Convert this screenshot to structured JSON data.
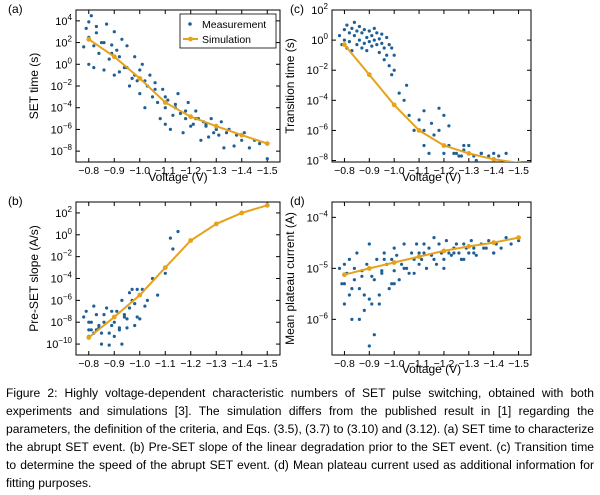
{
  "legend": {
    "measurement": "Measurement",
    "simulation": "Simulation"
  },
  "colors": {
    "measurement": "#1f5f95",
    "simulation": "#e6a21a",
    "axis": "#000000"
  },
  "caption": "Figure 2: Highly voltage-dependent characteristic numbers of SET pulse switching, obtained with both experiments and simulations [3]. The simulation differs from the published result in [1] regarding the parameters, the definition of the criteria, and Eqs. (3.5), (3.7) to (3.10) and (3.12). (a) SET time to characterize the abrupt SET event. (b) Pre-SET slope of the linear degradation prior to the SET event. (c) Transition time to determine the speed of the abrupt SET event. (d) Mean plateau current used as additional information for fitting purposes.",
  "chart_data": [
    {
      "panel": "(a)",
      "type": "scatter",
      "xlabel": "Voltage (V)",
      "ylabel": "SET time (s)",
      "xlim": [
        -0.75,
        -1.55
      ],
      "ylim": [
        1e-09,
        100000.0
      ],
      "log_y": true,
      "xticks": [
        -0.8,
        -0.9,
        -1.0,
        -1.1,
        -1.2,
        -1.3,
        -1.4,
        -1.5
      ],
      "xtick_labels": [
        "−0.8",
        "−0.9",
        "−1.0",
        "−1.1",
        "−1.2",
        "−1.3",
        "−1.4",
        "−1.5"
      ],
      "yticks": [
        1e-08,
        1e-06,
        0.0001,
        0.01,
        1,
        100,
        10000
      ],
      "ytick_labels": [
        {
          "b": "10",
          "e": "−8"
        },
        {
          "b": "10",
          "e": "−6"
        },
        {
          "b": "10",
          "e": "−4"
        },
        {
          "b": "10",
          "e": "−2"
        },
        {
          "b": "10",
          "e": "0"
        },
        {
          "b": "10",
          "e": "2"
        },
        {
          "b": "10",
          "e": "4"
        }
      ],
      "legend": true,
      "legend_position": "top-right",
      "simulation": {
        "x": [
          -0.8,
          -0.9,
          -1.0,
          -1.1,
          -1.2,
          -1.3,
          -1.4,
          -1.5
        ],
        "y": [
          200,
          5,
          0.05,
          0.0003,
          1.5e-05,
          2e-06,
          3e-07,
          5e-08
        ]
      },
      "measurement": {
        "x": [
          -0.78,
          -0.79,
          -0.8,
          -0.8,
          -0.81,
          -0.82,
          -0.82,
          -0.83,
          -0.84,
          -0.85,
          -0.86,
          -0.87,
          -0.88,
          -0.89,
          -0.9,
          -0.9,
          -0.91,
          -0.92,
          -0.93,
          -0.94,
          -0.95,
          -0.96,
          -0.97,
          -0.98,
          -0.99,
          -1.0,
          -1.0,
          -1.01,
          -1.02,
          -1.03,
          -1.04,
          -1.05,
          -1.06,
          -1.07,
          -1.08,
          -1.09,
          -1.1,
          -1.1,
          -1.11,
          -1.12,
          -1.13,
          -1.14,
          -1.15,
          -1.16,
          -1.17,
          -1.18,
          -1.19,
          -1.2,
          -1.21,
          -1.22,
          -1.23,
          -1.24,
          -1.25,
          -1.26,
          -1.27,
          -1.28,
          -1.29,
          -1.3,
          -1.31,
          -1.32,
          -1.33,
          -1.35,
          -1.37,
          -1.38,
          -1.4,
          -1.41,
          -1.43,
          -1.45,
          -1.47,
          -1.5,
          -0.8,
          -0.83,
          -0.86,
          -0.89,
          -0.92,
          -0.95,
          -0.98,
          -1.02,
          -1.06,
          -1.1,
          -1.14,
          -1.18,
          -1.22,
          -1.26,
          -1.3,
          -1.34
        ],
        "y": [
          40,
          2000,
          1,
          300,
          30000,
          50,
          0.5,
          800,
          10,
          100,
          0.3,
          5000,
          3,
          60,
          0.1,
          1000,
          20,
          0.2,
          200,
          0.5,
          50,
          0.01,
          0.05,
          5,
          0.03,
          0.002,
          0.3,
          1,
          0.0001,
          0.01,
          0.1,
          0.001,
          0.02,
          0.0003,
          1e-05,
          0.005,
          0.0001,
          3e-06,
          0.0005,
          1e-06,
          2e-05,
          0.0001,
          0.002,
          3e-05,
          5e-07,
          1e-05,
          0.0003,
          2e-06,
          3e-06,
          5e-05,
          1e-05,
          1e-07,
          5e-06,
          2e-06,
          2e-07,
          1e-05,
          5e-07,
          1e-06,
          3e-07,
          5e-06,
          2e-08,
          1e-06,
          3e-08,
          3e-07,
          1e-07,
          5e-07,
          2e-08,
          1e-07,
          5e-08,
          2e-09,
          8000,
          3000,
          100,
          10,
          5,
          0.5,
          0.1,
          0.03,
          0.005,
          0.001,
          0.0002,
          5e-05,
          1e-05,
          3e-06,
          1e-06,
          5e-07
        ]
      }
    },
    {
      "panel": "(b)",
      "type": "scatter",
      "xlabel": "",
      "ylabel": "Pre-SET slope (A/s)",
      "xlim": [
        -0.75,
        -1.55
      ],
      "ylim": [
        1e-11,
        1000.0
      ],
      "log_y": true,
      "xticks": [
        -0.8,
        -0.9,
        -1.0,
        -1.1,
        -1.2,
        -1.3,
        -1.4,
        -1.5
      ],
      "xtick_labels": [
        "−0.8",
        "−0.9",
        "−1.0",
        "−1.1",
        "−1.2",
        "−1.3",
        "−1.4",
        "−1.5"
      ],
      "yticks": [
        1e-10,
        1e-08,
        1e-06,
        0.0001,
        0.01,
        1,
        100
      ],
      "ytick_labels": [
        {
          "b": "10",
          "e": "−10"
        },
        {
          "b": "10",
          "e": "−8"
        },
        {
          "b": "10",
          "e": "−6"
        },
        {
          "b": "10",
          "e": "−4"
        },
        {
          "b": "10",
          "e": "−2"
        },
        {
          "b": "10",
          "e": "0"
        },
        {
          "b": "10",
          "e": "2"
        }
      ],
      "legend": false,
      "simulation": {
        "x": [
          -0.8,
          -0.9,
          -1.0,
          -1.1,
          -1.2,
          -1.3,
          -1.4,
          -1.5
        ],
        "y": [
          4e-10,
          3e-08,
          3e-06,
          0.001,
          0.3,
          10,
          100,
          500
        ]
      },
      "measurement": {
        "x": [
          -0.78,
          -0.79,
          -0.8,
          -0.8,
          -0.81,
          -0.82,
          -0.82,
          -0.83,
          -0.84,
          -0.85,
          -0.86,
          -0.87,
          -0.88,
          -0.89,
          -0.9,
          -0.9,
          -0.91,
          -0.92,
          -0.93,
          -0.94,
          -0.95,
          -0.96,
          -0.97,
          -0.98,
          -0.99,
          -1.0,
          -1.0,
          -1.01,
          -1.02,
          -1.03,
          -1.05,
          -1.07,
          -1.1,
          -1.12,
          -1.13,
          -1.15,
          -0.8,
          -0.83,
          -0.86,
          -0.89,
          -0.92,
          -0.95,
          -0.97,
          -0.99,
          -0.84,
          -0.88,
          -0.93,
          -0.96,
          -0.98,
          -0.81,
          -0.85,
          -0.9,
          -0.94
        ],
        "y": [
          3e-08,
          1e-07,
          2e-09,
          5e-10,
          1e-08,
          3e-07,
          1e-09,
          5e-08,
          3e-09,
          1e-10,
          1e-08,
          2e-07,
          1e-09,
          5e-09,
          3e-08,
          5e-10,
          1e-07,
          2e-09,
          1e-06,
          5e-08,
          3e-09,
          2e-07,
          1e-06,
          5e-09,
          1e-05,
          3e-06,
          2e-08,
          1e-05,
          3e-07,
          1e-06,
          0.0001,
          3e-06,
          0.0003,
          0.5,
          0.05,
          2,
          1e-08,
          2e-09,
          5e-08,
          1e-07,
          3e-09,
          2e-08,
          1e-05,
          3e-08,
          5e-09,
          8e-11,
          1e-10,
          5e-06,
          5e-07,
          2e-09,
          1e-09,
          1e-08,
          3e-08
        ]
      }
    },
    {
      "panel": "(c)",
      "type": "scatter",
      "xlabel": "Voltage (V)",
      "ylabel": "Transition time (s)",
      "xlim": [
        -0.75,
        -1.55
      ],
      "ylim": [
        8e-09,
        100
      ],
      "log_y": true,
      "xticks": [
        -0.8,
        -0.9,
        -1.0,
        -1.1,
        -1.2,
        -1.3,
        -1.4,
        -1.5
      ],
      "xtick_labels": [
        "−0.8",
        "−0.9",
        "−1.0",
        "−1.1",
        "−1.2",
        "−1.3",
        "−1.4",
        "−1.5"
      ],
      "yticks": [
        1e-08,
        1e-06,
        0.0001,
        0.01,
        1,
        100
      ],
      "ytick_labels": [
        {
          "b": "10",
          "e": "−8"
        },
        {
          "b": "10",
          "e": "−6"
        },
        {
          "b": "10",
          "e": "−4"
        },
        {
          "b": "10",
          "e": "−2"
        },
        {
          "b": "10",
          "e": "0"
        },
        {
          "b": "10",
          "e": "2"
        }
      ],
      "legend": false,
      "simulation": {
        "x": [
          -0.8,
          -0.9,
          -1.0,
          -1.1,
          -1.2,
          -1.3,
          -1.4,
          -1.5
        ],
        "y": [
          0.5,
          0.005,
          5e-05,
          1e-06,
          1e-07,
          3e-08,
          1.2e-08,
          7e-09
        ]
      },
      "measurement": {
        "x": [
          -0.78,
          -0.79,
          -0.8,
          -0.8,
          -0.81,
          -0.81,
          -0.82,
          -0.82,
          -0.83,
          -0.83,
          -0.84,
          -0.84,
          -0.85,
          -0.85,
          -0.86,
          -0.86,
          -0.87,
          -0.87,
          -0.88,
          -0.88,
          -0.89,
          -0.89,
          -0.9,
          -0.9,
          -0.91,
          -0.91,
          -0.92,
          -0.92,
          -0.93,
          -0.93,
          -0.94,
          -0.94,
          -0.95,
          -0.95,
          -0.96,
          -0.96,
          -0.97,
          -0.97,
          -0.98,
          -0.98,
          -0.99,
          -0.99,
          -1.0,
          -1.0,
          -1.02,
          -1.04,
          -1.06,
          -1.08,
          -1.1,
          -1.12,
          -1.14,
          -1.16,
          -1.18,
          -1.2,
          -1.22,
          -1.24,
          -1.26,
          -1.28,
          -1.3,
          -1.32,
          -1.35,
          -1.38,
          -1.4,
          -1.42,
          -1.45,
          -1.1,
          -1.15,
          -1.2,
          -1.25,
          -1.3,
          -1.05,
          -1.12,
          -1.18,
          -1.22,
          -1.28,
          -1.35,
          -1.12,
          -1.2,
          -1.27,
          -1.33
        ],
        "y": [
          2,
          0.5,
          5,
          1,
          10,
          0.3,
          3,
          0.8,
          6,
          0.2,
          2,
          15,
          0.5,
          4,
          1,
          8,
          0.3,
          3,
          0.6,
          5,
          1.5,
          0.2,
          4,
          0.8,
          2,
          0.4,
          6,
          1,
          3,
          0.5,
          1.2,
          0.15,
          2.5,
          0.6,
          0.3,
          0.05,
          1.5,
          0.1,
          0.02,
          0.5,
          0.3,
          0.005,
          0.01,
          0.1,
          0.0003,
          0.0001,
          1e-05,
          1e-06,
          5e-06,
          1e-07,
          3e-08,
          5e-07,
          1e-06,
          3e-08,
          1e-07,
          3e-08,
          2e-08,
          5e-08,
          3e-08,
          2e-08,
          3e-08,
          2e-08,
          3e-08,
          2e-08,
          3e-08,
          1e-06,
          3e-06,
          1e-07,
          3e-08,
          1e-07,
          0.001,
          2e-05,
          3e-05,
          2e-06,
          1e-07,
          3e-08,
          1e-06,
          1e-05,
          2e-08,
          1e-08
        ]
      }
    },
    {
      "panel": "(d)",
      "type": "scatter",
      "xlabel": "Voltage (V)",
      "ylabel": "Mean plateau current (A)",
      "xlim": [
        -0.75,
        -1.55
      ],
      "ylim": [
        2e-07,
        0.0002
      ],
      "log_y": true,
      "xticks": [
        -0.8,
        -0.9,
        -1.0,
        -1.1,
        -1.2,
        -1.3,
        -1.4,
        -1.5
      ],
      "xtick_labels": [
        "−0.8",
        "−0.9",
        "−1.0",
        "−1.1",
        "−1.2",
        "−1.3",
        "−1.4",
        "−1.5"
      ],
      "yticks": [
        1e-06,
        1e-05,
        0.0001
      ],
      "ytick_labels": [
        {
          "b": "10",
          "e": "−6"
        },
        {
          "b": "10",
          "e": "−5"
        },
        {
          "b": "10",
          "e": "−4"
        }
      ],
      "legend": false,
      "simulation": {
        "x": [
          -0.8,
          -0.9,
          -1.0,
          -1.1,
          -1.2,
          -1.3,
          -1.4,
          -1.5
        ],
        "y": [
          7.5e-06,
          1e-05,
          1.3e-05,
          1.7e-05,
          2.2e-05,
          2.7e-05,
          3.2e-05,
          4e-05
        ]
      },
      "measurement": {
        "x": [
          -0.78,
          -0.79,
          -0.8,
          -0.8,
          -0.81,
          -0.82,
          -0.82,
          -0.83,
          -0.84,
          -0.85,
          -0.86,
          -0.87,
          -0.88,
          -0.89,
          -0.9,
          -0.9,
          -0.91,
          -0.92,
          -0.93,
          -0.94,
          -0.95,
          -0.96,
          -0.97,
          -0.98,
          -0.99,
          -1.0,
          -1.0,
          -1.01,
          -1.02,
          -1.03,
          -1.04,
          -1.05,
          -1.06,
          -1.07,
          -1.08,
          -1.09,
          -1.1,
          -1.1,
          -1.11,
          -1.12,
          -1.13,
          -1.14,
          -1.15,
          -1.16,
          -1.17,
          -1.18,
          -1.19,
          -1.2,
          -1.21,
          -1.22,
          -1.23,
          -1.24,
          -1.25,
          -1.26,
          -1.27,
          -1.28,
          -1.29,
          -1.3,
          -1.31,
          -1.32,
          -1.33,
          -1.35,
          -1.37,
          -1.38,
          -1.4,
          -1.41,
          -1.43,
          -1.45,
          -1.47,
          -1.5,
          -0.8,
          -0.84,
          -0.88,
          -0.92,
          -0.96,
          -1.0,
          -1.04,
          -1.08,
          -1.12,
          -1.16,
          -1.2,
          -1.24,
          -1.28,
          -1.32,
          -1.36,
          -1.4,
          -0.86,
          -0.9,
          -0.94,
          -0.83,
          -0.87,
          -0.91,
          -0.95,
          -0.99
        ],
        "y": [
          1e-05,
          5e-06,
          2e-06,
          1.2e-05,
          8e-06,
          3e-06,
          1.5e-05,
          1e-06,
          6e-06,
          2e-05,
          4e-06,
          9e-06,
          1.5e-06,
          1.2e-05,
          2.5e-06,
          3e-05,
          7e-06,
          5e-07,
          1.5e-05,
          3e-06,
          8e-06,
          2e-05,
          1.2e-05,
          4e-06,
          1.5e-05,
          9e-06,
          2.5e-05,
          1.8e-05,
          6e-06,
          1.2e-05,
          3e-05,
          1e-05,
          8e-06,
          2e-05,
          1.5e-05,
          3e-05,
          1.2e-05,
          2e-05,
          1.5e-05,
          3e-05,
          1e-05,
          2.5e-05,
          1.8e-05,
          4e-05,
          1.2e-05,
          3e-05,
          2e-05,
          1.5e-05,
          3.5e-05,
          2e-05,
          1.8e-05,
          2.5e-05,
          3e-05,
          2e-05,
          1.5e-05,
          3e-05,
          2.5e-05,
          2e-05,
          3.5e-05,
          2.5e-05,
          1.8e-05,
          3e-05,
          2.5e-05,
          3.5e-05,
          2e-05,
          3e-05,
          2.5e-05,
          4e-05,
          3e-05,
          3.5e-05,
          5e-06,
          1e-05,
          3e-06,
          6e-06,
          1.5e-05,
          5e-06,
          1e-05,
          8e-06,
          2e-05,
          1.5e-05,
          1e-05,
          2e-05,
          1.5e-05,
          2e-05,
          2.5e-05,
          2e-05,
          1e-06,
          3e-07,
          2e-06,
          4e-06,
          7e-06,
          2e-06,
          9e-06,
          5e-06
        ]
      }
    }
  ]
}
